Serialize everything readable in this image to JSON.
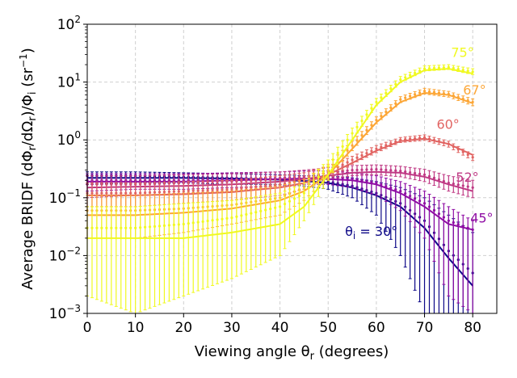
{
  "chart_data": {
    "type": "line",
    "xlabel": "Viewing angle θ_r (degrees)",
    "ylabel": "Average BRIDF (dΦ_r/dΩ_r)/Φ_i (sr^-1)",
    "xlim": [
      0,
      85
    ],
    "ylim": [
      0.001,
      100
    ],
    "yscale": "log",
    "grid": true,
    "x_ticks": [
      "0",
      "10",
      "20",
      "30",
      "40",
      "50",
      "60",
      "70",
      "80"
    ],
    "y_ticks": [
      "10^-3",
      "10^-2",
      "10^-1",
      "10^0",
      "10^1",
      "10^2"
    ],
    "series": [
      {
        "name": "θ_i = 30°",
        "label_text": "θ_i = 30°",
        "color": "#0d0887",
        "x": [
          0,
          10,
          20,
          30,
          40,
          45,
          50,
          55,
          60,
          65,
          70,
          75,
          80
        ],
        "model": [
          0.22,
          0.22,
          0.22,
          0.215,
          0.205,
          0.195,
          0.18,
          0.15,
          0.11,
          0.07,
          0.03,
          0.009,
          0.003
        ],
        "measured": [
          0.24,
          0.24,
          0.23,
          0.22,
          0.21,
          0.2,
          0.19,
          0.16,
          0.12,
          0.08,
          0.04,
          0.012,
          0.005
        ],
        "err_low": [
          0.17,
          0.18,
          0.18,
          0.17,
          0.17,
          0.16,
          0.14,
          0.1,
          0.05,
          0.01,
          0.001,
          0.001,
          0.001
        ],
        "err_high": [
          0.28,
          0.28,
          0.27,
          0.26,
          0.25,
          0.24,
          0.24,
          0.22,
          0.19,
          0.15,
          0.1,
          0.05,
          0.025
        ]
      },
      {
        "name": "45°",
        "label_text": "45°",
        "color": "#8f0da4",
        "x": [
          0,
          10,
          20,
          30,
          40,
          45,
          50,
          55,
          60,
          65,
          70,
          75,
          80
        ],
        "model": [
          0.19,
          0.19,
          0.19,
          0.2,
          0.21,
          0.215,
          0.21,
          0.2,
          0.17,
          0.12,
          0.07,
          0.035,
          0.028
        ],
        "measured": [
          0.2,
          0.2,
          0.2,
          0.21,
          0.22,
          0.23,
          0.23,
          0.21,
          0.18,
          0.13,
          0.08,
          0.04,
          0.028
        ],
        "err_low": [
          0.13,
          0.14,
          0.14,
          0.15,
          0.16,
          0.17,
          0.17,
          0.15,
          0.11,
          0.06,
          0.02,
          0.002,
          0.001
        ],
        "err_high": [
          0.26,
          0.26,
          0.26,
          0.27,
          0.28,
          0.29,
          0.29,
          0.27,
          0.24,
          0.19,
          0.13,
          0.07,
          0.04
        ]
      },
      {
        "name": "52°",
        "label_text": "52°",
        "color": "#bf3984",
        "x": [
          0,
          10,
          20,
          30,
          40,
          45,
          50,
          55,
          60,
          65,
          70,
          75,
          80
        ],
        "model": [
          0.15,
          0.155,
          0.16,
          0.17,
          0.19,
          0.21,
          0.24,
          0.27,
          0.28,
          0.27,
          0.23,
          0.17,
          0.13
        ],
        "measured": [
          0.17,
          0.17,
          0.18,
          0.19,
          0.21,
          0.23,
          0.27,
          0.3,
          0.31,
          0.29,
          0.25,
          0.18,
          0.15
        ],
        "err_low": [
          0.1,
          0.11,
          0.12,
          0.13,
          0.15,
          0.17,
          0.21,
          0.24,
          0.25,
          0.23,
          0.19,
          0.13,
          0.1
        ],
        "err_high": [
          0.24,
          0.24,
          0.25,
          0.26,
          0.28,
          0.3,
          0.33,
          0.36,
          0.37,
          0.35,
          0.31,
          0.24,
          0.2
        ]
      },
      {
        "name": "60°",
        "label_text": "60°",
        "color": "#e16462",
        "x": [
          0,
          10,
          20,
          30,
          40,
          45,
          50,
          55,
          60,
          65,
          70,
          75,
          80
        ],
        "model": [
          0.11,
          0.11,
          0.115,
          0.125,
          0.15,
          0.18,
          0.25,
          0.4,
          0.65,
          0.95,
          1.05,
          0.85,
          0.55
        ],
        "measured": [
          0.12,
          0.12,
          0.13,
          0.14,
          0.17,
          0.2,
          0.28,
          0.45,
          0.7,
          1.0,
          1.1,
          0.85,
          0.5
        ],
        "err_low": [
          0.07,
          0.07,
          0.08,
          0.09,
          0.11,
          0.14,
          0.21,
          0.38,
          0.6,
          0.9,
          0.98,
          0.75,
          0.44
        ],
        "err_high": [
          0.18,
          0.18,
          0.19,
          0.2,
          0.24,
          0.27,
          0.35,
          0.52,
          0.8,
          1.1,
          1.22,
          0.95,
          0.56
        ]
      },
      {
        "name": "67°",
        "label_text": "67°",
        "color": "#fca636",
        "x": [
          0,
          10,
          20,
          30,
          40,
          45,
          50,
          55,
          60,
          65,
          70,
          75,
          80
        ],
        "model": [
          0.05,
          0.05,
          0.055,
          0.065,
          0.09,
          0.13,
          0.25,
          0.7,
          2.0,
          4.5,
          6.5,
          6.0,
          4.3
        ],
        "measured": [
          0.06,
          0.06,
          0.065,
          0.075,
          0.1,
          0.15,
          0.3,
          0.8,
          2.2,
          5.0,
          7.0,
          6.2,
          4.5
        ],
        "err_low": [
          0.02,
          0.02,
          0.025,
          0.035,
          0.05,
          0.09,
          0.22,
          0.65,
          1.9,
          4.4,
          6.2,
          5.5,
          3.9
        ],
        "err_high": [
          0.11,
          0.11,
          0.12,
          0.13,
          0.16,
          0.21,
          0.38,
          0.95,
          2.5,
          5.6,
          7.8,
          6.9,
          5.1
        ]
      },
      {
        "name": "75°",
        "label_text": "75°",
        "color": "#f0f921",
        "x": [
          0,
          10,
          20,
          30,
          40,
          45,
          50,
          55,
          60,
          65,
          70,
          75,
          80
        ],
        "model": [
          0.02,
          0.02,
          0.02,
          0.025,
          0.035,
          0.07,
          0.25,
          1.0,
          4.0,
          10.0,
          16.0,
          17.0,
          14.0
        ],
        "measured": [
          0.03,
          0.03,
          0.035,
          0.045,
          0.07,
          0.12,
          0.35,
          1.3,
          4.5,
          11.0,
          17.0,
          18.0,
          15.0
        ],
        "err_low": [
          0.002,
          0.001,
          0.002,
          0.004,
          0.01,
          0.04,
          0.2,
          1.0,
          3.9,
          9.8,
          15.5,
          16.5,
          13.5
        ],
        "err_high": [
          0.07,
          0.07,
          0.08,
          0.09,
          0.12,
          0.18,
          0.45,
          1.6,
          5.2,
          12.5,
          19.0,
          20.0,
          17.0
        ]
      }
    ]
  }
}
